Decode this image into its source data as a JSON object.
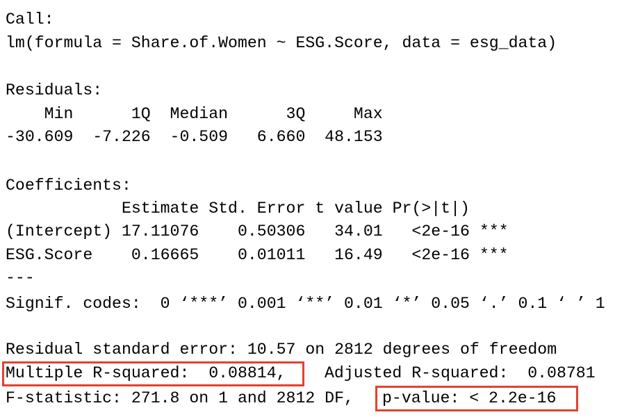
{
  "call": {
    "label": "Call:",
    "formula": "lm(formula = Share.of.Women ~ ESG.Score, data = esg_data)"
  },
  "residuals": {
    "label": "Residuals:",
    "header": "    Min      1Q  Median      3Q     Max",
    "values": "-30.609  -7.226  -0.509   6.660  48.153"
  },
  "coefficients": {
    "label": "Coefficients:",
    "header": "            Estimate Std. Error t value Pr(>|t|)",
    "rows": [
      "(Intercept) 17.11076    0.50306   34.01   <2e-16 ***",
      "ESG.Score    0.16665    0.01011   16.49   <2e-16 ***"
    ],
    "separator": "---",
    "signif": "Signif. codes:  0 ‘***’ 0.001 ‘**’ 0.01 ‘*’ 0.05 ‘.’ 0.1 ‘ ’ 1"
  },
  "summary": {
    "residual_se": "Residual standard error: 10.57 on 2812 degrees of freedom",
    "r_squared": "Multiple R-squared:  0.08814,",
    "adj_r_squared": "Adjusted R-squared:  0.08781",
    "f_statistic": "F-statistic: 271.8 on 1 and 2812 DF,",
    "p_value": "p-value: < 2.2e-16"
  }
}
